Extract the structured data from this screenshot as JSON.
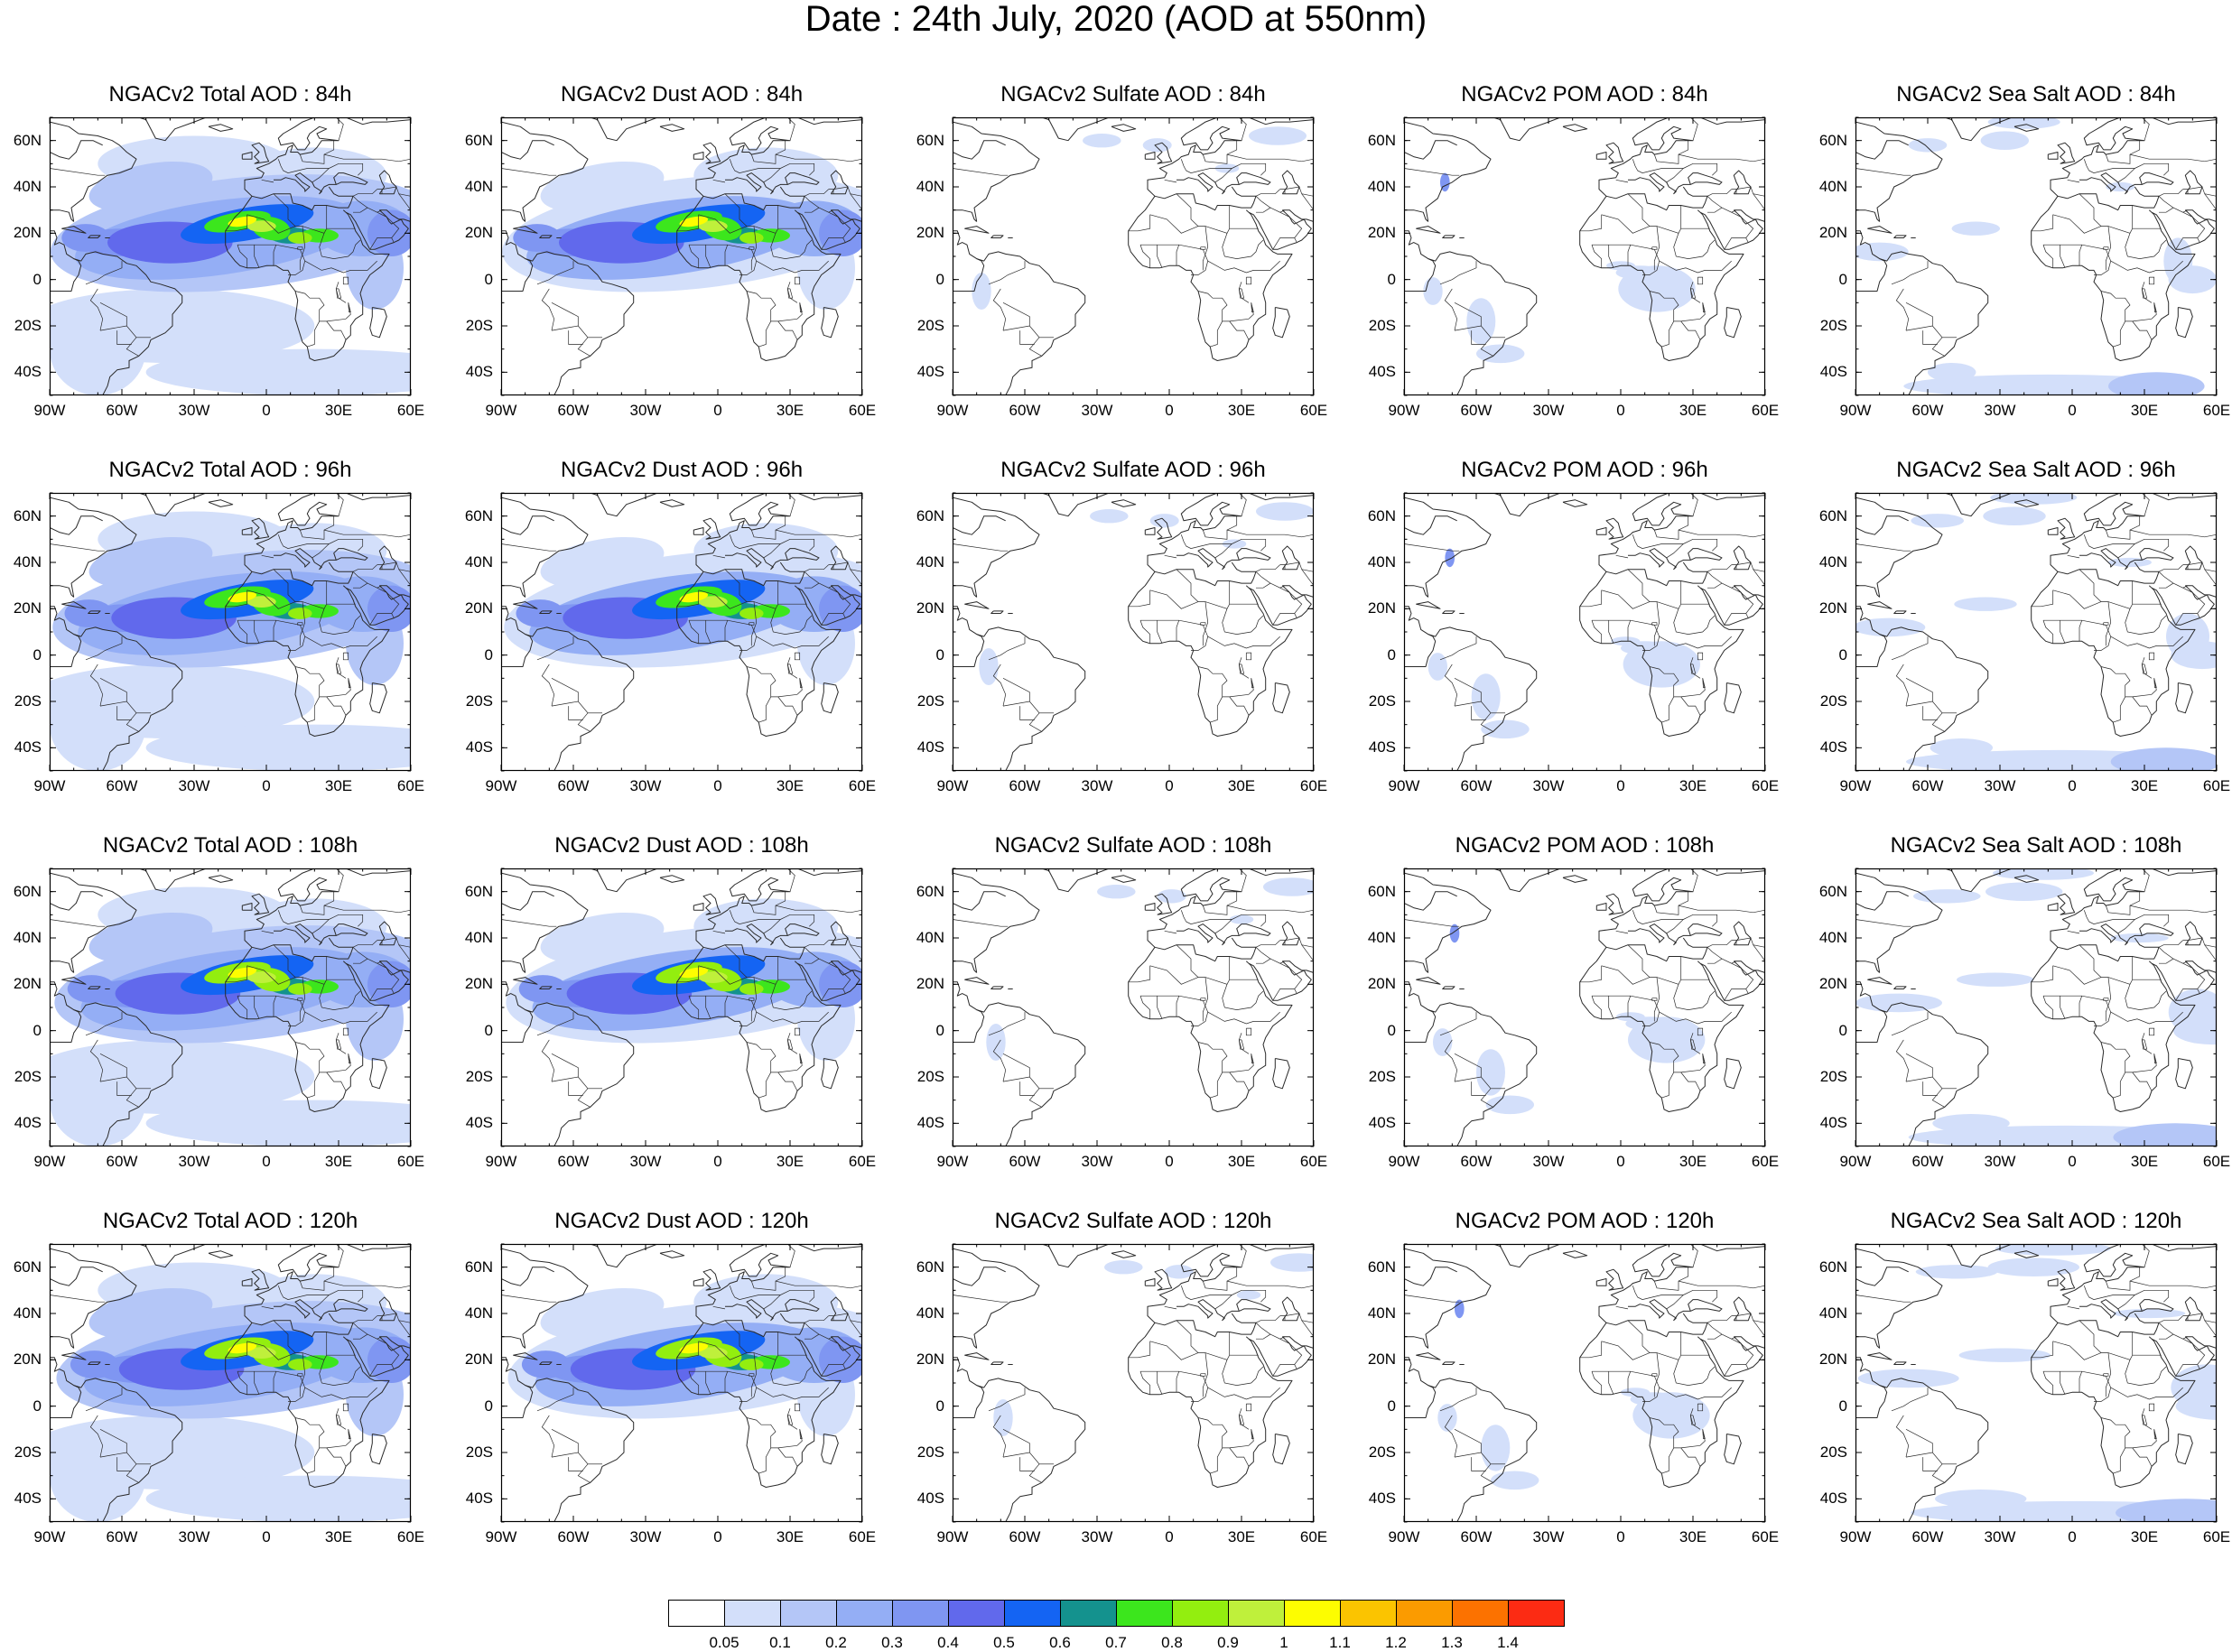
{
  "title": "Date : 24th July, 2020 (AOD at 550nm)",
  "lat_labels": [
    "60N",
    "40N",
    "20N",
    "0",
    "20S",
    "40S"
  ],
  "lat_values": [
    60,
    40,
    20,
    0,
    -20,
    -40
  ],
  "lon_labels": [
    "90W",
    "60W",
    "30W",
    "0",
    "30E",
    "60E"
  ],
  "lon_values": [
    -90,
    -60,
    -30,
    0,
    30,
    60
  ],
  "map_extent": {
    "lon": [
      -90,
      60
    ],
    "lat": [
      -50,
      70
    ]
  },
  "panel_titles": [
    [
      "NGACv2 Total AOD : 84h",
      "NGACv2 Dust AOD : 84h",
      "NGACv2 Sulfate AOD : 84h",
      "NGACv2 POM AOD : 84h",
      "NGACv2 Sea Salt AOD : 84h"
    ],
    [
      "NGACv2 Total AOD : 96h",
      "NGACv2 Dust AOD : 96h",
      "NGACv2 Sulfate AOD : 96h",
      "NGACv2 POM AOD : 96h",
      "NGACv2 Sea Salt AOD : 96h"
    ],
    [
      "NGACv2 Total AOD : 108h",
      "NGACv2 Dust AOD : 108h",
      "NGACv2 Sulfate AOD : 108h",
      "NGACv2 POM AOD : 108h",
      "NGACv2 Sea Salt AOD : 108h"
    ],
    [
      "NGACv2 Total AOD : 120h",
      "NGACv2 Dust AOD : 120h",
      "NGACv2 Sulfate AOD : 120h",
      "NGACv2 POM AOD : 120h",
      "NGACv2 Sea Salt  AOD : 120h"
    ]
  ],
  "colorbar": {
    "labels": [
      "0.05",
      "0.1",
      "0.2",
      "0.3",
      "0.4",
      "0.5",
      "0.6",
      "0.7",
      "0.8",
      "0.9",
      "1",
      "1.1",
      "1.2",
      "1.3",
      "1.4"
    ],
    "colors": [
      "#ffffff",
      "#d3dffa",
      "#b4c6f7",
      "#94aef5",
      "#7f96f2",
      "#6169ec",
      "#1464f3",
      "#14928e",
      "#3ce61d",
      "#93ee0f",
      "#bff03b",
      "#fdfd00",
      "#fbc400",
      "#fb9b00",
      "#fc7200",
      "#fc2b13"
    ]
  },
  "map_colors": {
    "coast": "#2a2a2a",
    "ocean": "#ffffff"
  }
}
